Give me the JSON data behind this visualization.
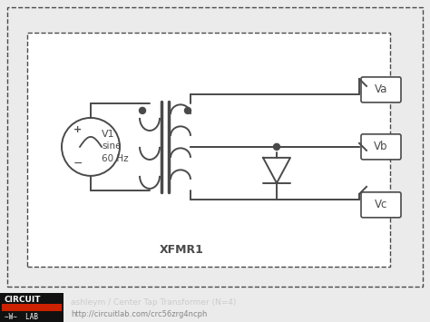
{
  "bg_color": "#ebebeb",
  "circuit_bg": "#ffffff",
  "dark_bg": "#1c1c1c",
  "line_color": "#4a4a4a",
  "footer_text1": "ashleym / Center Tap Transformer (N=4)",
  "footer_text2": "http://circuitlab.com/crc56zrg4ncph",
  "xfmr_label": "XFMR1",
  "terminal_labels": [
    "Va",
    "Vb",
    "Vc"
  ],
  "footer_logo_text1": "CIRCUIT",
  "footer_logo_text2": "~W~  LAB",
  "red_bar_color": "#cc2200",
  "figsize": [
    4.74,
    3.55
  ],
  "dpi": 100
}
